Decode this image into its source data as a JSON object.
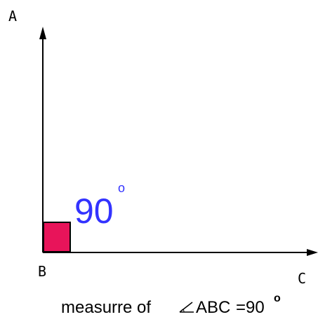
{
  "points": {
    "a": "A",
    "b": "B",
    "c": "C"
  },
  "angle": {
    "value": "90",
    "degree_symbol": "o"
  },
  "caption": {
    "prefix": "measurre of",
    "angle_name": "ABC",
    "equals_value": "=90",
    "degree_symbol": "o"
  },
  "colors": {
    "right_angle_fill": "#e8145a",
    "angle_text": "#3333ff",
    "lines": "#000000"
  },
  "icons": {
    "angle_symbol": "angle-symbol-icon"
  }
}
